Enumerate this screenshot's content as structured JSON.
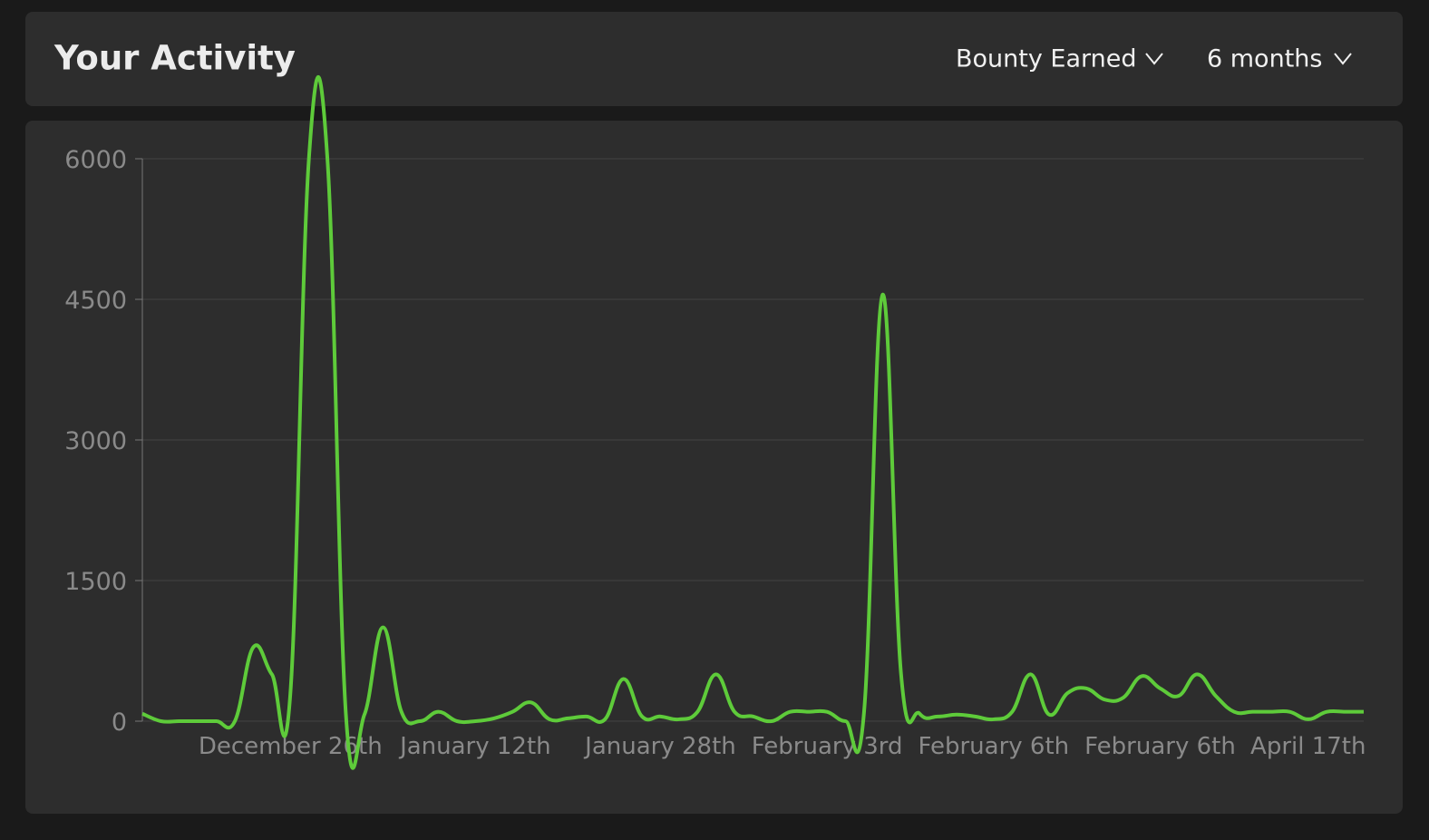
{
  "header": {
    "title": "Your Activity",
    "dropdowns": [
      "Bounty Earned",
      "6 months"
    ]
  },
  "chart_data": {
    "type": "line",
    "categories": [
      null,
      null,
      null,
      null,
      null,
      null,
      null,
      null,
      "December 26th",
      null,
      null,
      null,
      null,
      null,
      null,
      null,
      null,
      null,
      "January 12th",
      null,
      null,
      null,
      null,
      null,
      null,
      null,
      null,
      null,
      "January 28th",
      null,
      null,
      null,
      null,
      null,
      null,
      null,
      null,
      "February 3rd",
      null,
      null,
      null,
      null,
      null,
      null,
      null,
      null,
      "February 6th",
      null,
      null,
      null,
      null,
      null,
      null,
      null,
      null,
      "February 6th",
      null,
      null,
      null,
      null,
      null,
      null,
      null,
      "April 17th",
      null,
      null,
      null
    ],
    "series": [
      {
        "name": "Bounty Earned",
        "color": "#5ecb3a",
        "values": [
          80,
          0,
          0,
          0,
          0,
          0,
          790,
          500,
          300,
          6000,
          6000,
          70,
          70,
          1000,
          100,
          0,
          100,
          0,
          0,
          30,
          100,
          200,
          20,
          30,
          50,
          20,
          450,
          50,
          50,
          20,
          100,
          500,
          100,
          50,
          0,
          100,
          100,
          100,
          0,
          100,
          4550,
          500,
          80,
          50,
          70,
          50,
          20,
          100,
          500,
          70,
          300,
          350,
          230,
          250,
          480,
          350,
          270,
          500,
          270,
          100,
          100,
          100,
          100,
          20,
          100,
          100,
          100
        ]
      }
    ],
    "ylim": [
      0,
      6000
    ],
    "yticks": [
      0,
      1500,
      3000,
      4500,
      6000
    ],
    "grid": true
  }
}
